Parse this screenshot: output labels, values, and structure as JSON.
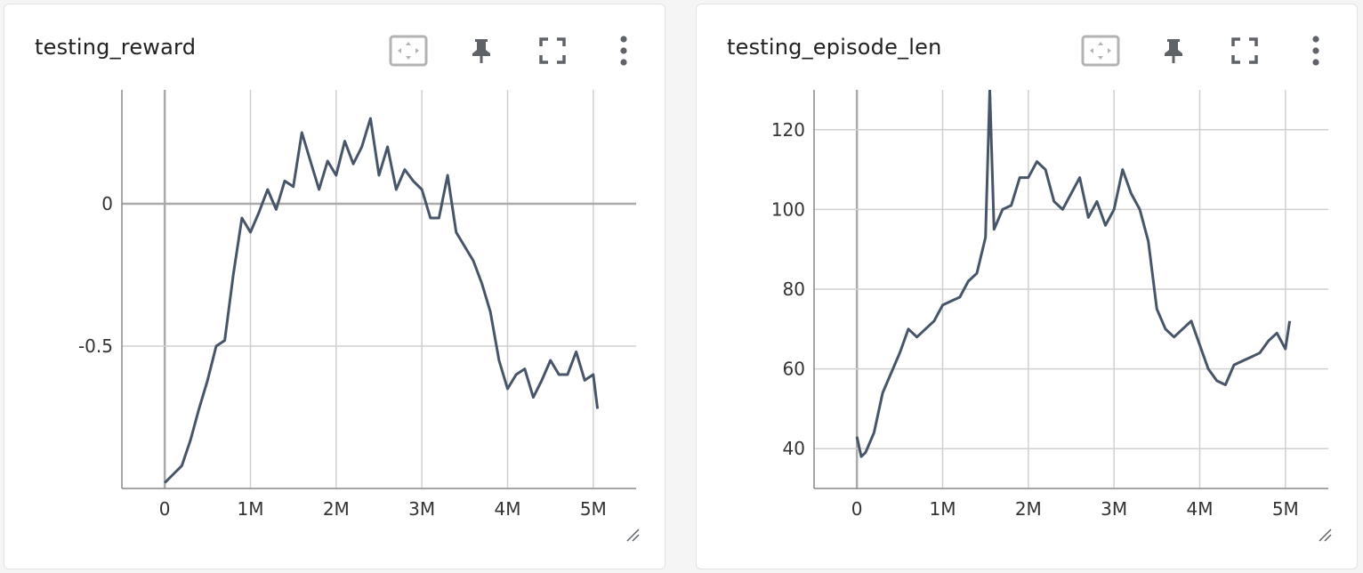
{
  "cards": [
    {
      "title": "testing_reward",
      "tools": {
        "data_select": "data-selection-icon",
        "pin": "pin-icon",
        "fullscreen": "fullscreen-icon",
        "menu": "more-vert-icon"
      }
    },
    {
      "title": "testing_episode_len",
      "tools": {
        "data_select": "data-selection-icon",
        "pin": "pin-icon",
        "fullscreen": "fullscreen-icon",
        "menu": "more-vert-icon"
      }
    }
  ],
  "colors": {
    "line": "#475569",
    "grid": "#d0d0d0",
    "zero_axis": "#aaaaaa",
    "text": "#333333"
  },
  "chart_data": [
    {
      "type": "line",
      "title": "testing_reward",
      "xlabel": "",
      "ylabel": "",
      "xlim": [
        -500000,
        5500000
      ],
      "ylim": [
        -1.0,
        0.4
      ],
      "x_ticks": [
        0,
        1000000,
        2000000,
        3000000,
        4000000,
        5000000
      ],
      "x_tick_labels": [
        "0",
        "1M",
        "2M",
        "3M",
        "4M",
        "5M"
      ],
      "y_ticks": [
        0,
        -0.5
      ],
      "y_tick_labels": [
        "0",
        "-0.5"
      ],
      "grid": true,
      "series": [
        {
          "x": [
            0,
            100000,
            200000,
            300000,
            400000,
            500000,
            600000,
            700000,
            800000,
            900000,
            1000000,
            1100000,
            1200000,
            1300000,
            1400000,
            1500000,
            1600000,
            1700000,
            1800000,
            1900000,
            2000000,
            2100000,
            2200000,
            2300000,
            2400000,
            2500000,
            2600000,
            2700000,
            2800000,
            2900000,
            3000000,
            3100000,
            3200000,
            3300000,
            3400000,
            3500000,
            3600000,
            3700000,
            3800000,
            3900000,
            4000000,
            4100000,
            4200000,
            4300000,
            4400000,
            4500000,
            4600000,
            4700000,
            4800000,
            4900000,
            5000000,
            5050000
          ],
          "y": [
            -0.98,
            -0.95,
            -0.92,
            -0.83,
            -0.72,
            -0.62,
            -0.5,
            -0.48,
            -0.25,
            -0.05,
            -0.1,
            -0.03,
            0.05,
            -0.02,
            0.08,
            0.06,
            0.25,
            0.15,
            0.05,
            0.15,
            0.1,
            0.22,
            0.14,
            0.2,
            0.3,
            0.1,
            0.2,
            0.05,
            0.12,
            0.08,
            0.05,
            -0.05,
            -0.05,
            0.1,
            -0.1,
            -0.15,
            -0.2,
            -0.28,
            -0.38,
            -0.55,
            -0.65,
            -0.6,
            -0.58,
            -0.68,
            -0.62,
            -0.55,
            -0.6,
            -0.6,
            -0.52,
            -0.62,
            -0.6,
            -0.72
          ]
        }
      ]
    },
    {
      "type": "line",
      "title": "testing_episode_len",
      "xlabel": "",
      "ylabel": "",
      "xlim": [
        -500000,
        5500000
      ],
      "ylim": [
        30,
        130
      ],
      "x_ticks": [
        0,
        1000000,
        2000000,
        3000000,
        4000000,
        5000000
      ],
      "x_tick_labels": [
        "0",
        "1M",
        "2M",
        "3M",
        "4M",
        "5M"
      ],
      "y_ticks": [
        40,
        60,
        80,
        100,
        120
      ],
      "y_tick_labels": [
        "40",
        "60",
        "80",
        "100",
        "120"
      ],
      "grid": true,
      "series": [
        {
          "x": [
            0,
            50000,
            100000,
            200000,
            300000,
            400000,
            500000,
            600000,
            700000,
            800000,
            900000,
            1000000,
            1100000,
            1200000,
            1300000,
            1400000,
            1500000,
            1550000,
            1600000,
            1700000,
            1800000,
            1900000,
            2000000,
            2100000,
            2200000,
            2300000,
            2400000,
            2500000,
            2600000,
            2700000,
            2800000,
            2900000,
            3000000,
            3100000,
            3200000,
            3300000,
            3400000,
            3500000,
            3600000,
            3700000,
            3800000,
            3900000,
            4000000,
            4100000,
            4200000,
            4300000,
            4400000,
            4500000,
            4600000,
            4700000,
            4800000,
            4900000,
            5000000,
            5050000
          ],
          "y": [
            43,
            38,
            39,
            44,
            54,
            59,
            64,
            70,
            68,
            70,
            72,
            76,
            77,
            78,
            82,
            84,
            93,
            130,
            95,
            100,
            101,
            108,
            108,
            112,
            110,
            102,
            100,
            104,
            108,
            98,
            102,
            96,
            100,
            110,
            104,
            100,
            92,
            75,
            70,
            68,
            70,
            72,
            66,
            60,
            57,
            56,
            61,
            62,
            63,
            64,
            67,
            69,
            65,
            72
          ]
        }
      ]
    }
  ]
}
